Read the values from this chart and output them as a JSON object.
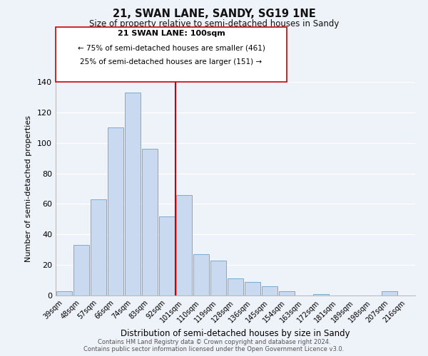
{
  "title": "21, SWAN LANE, SANDY, SG19 1NE",
  "subtitle": "Size of property relative to semi-detached houses in Sandy",
  "xlabel": "Distribution of semi-detached houses by size in Sandy",
  "ylabel": "Number of semi-detached properties",
  "categories": [
    "39sqm",
    "48sqm",
    "57sqm",
    "66sqm",
    "74sqm",
    "83sqm",
    "92sqm",
    "101sqm",
    "110sqm",
    "119sqm",
    "128sqm",
    "136sqm",
    "145sqm",
    "154sqm",
    "163sqm",
    "172sqm",
    "181sqm",
    "189sqm",
    "198sqm",
    "207sqm",
    "216sqm"
  ],
  "values": [
    3,
    33,
    63,
    110,
    133,
    96,
    52,
    66,
    27,
    23,
    11,
    9,
    6,
    3,
    0,
    1,
    0,
    0,
    0,
    3,
    0
  ],
  "bar_color": "#c8d9f0",
  "bar_edge_color": "#7aabcf",
  "vline_color": "#cc0000",
  "ylim": [
    0,
    140
  ],
  "yticks": [
    0,
    20,
    40,
    60,
    80,
    100,
    120,
    140
  ],
  "annotation_title": "21 SWAN LANE: 100sqm",
  "annotation_line1": "← 75% of semi-detached houses are smaller (461)",
  "annotation_line2": "25% of semi-detached houses are larger (151) →",
  "annotation_box_color": "#ffffff",
  "annotation_box_edge": "#cc0000",
  "footer1": "Contains HM Land Registry data © Crown copyright and database right 2024.",
  "footer2": "Contains public sector information licensed under the Open Government Licence v3.0.",
  "background_color": "#eef2f9"
}
